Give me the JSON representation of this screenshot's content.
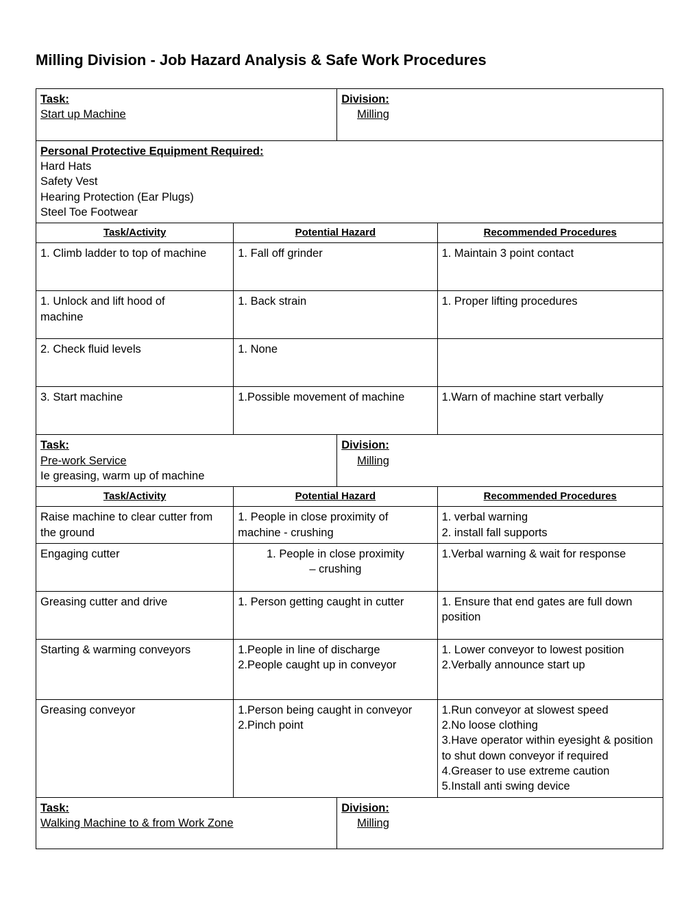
{
  "page": {
    "title": "Milling Division - Job Hazard Analysis & Safe Work Procedures"
  },
  "section1": {
    "task_label": "Task: ",
    "task_value": "Start up Machine",
    "division_label": "Division: ",
    "division_value": "Milling",
    "ppe_label": "Personal Protective Equipment Required:",
    "ppe_1": "Hard Hats",
    "ppe_2": "Safety Vest",
    "ppe_3": "Hearing Protection (Ear Plugs)",
    "ppe_4": "Steel Toe Footwear",
    "col1": "Task/Activity",
    "col2": "Potential Hazard",
    "col3": "Recommended Procedures",
    "rows": [
      {
        "a": "1.  Climb ladder to top of machine",
        "h": "1.  Fall off grinder",
        "p": "1.  Maintain 3 point contact"
      },
      {
        "a": "1.  Unlock and lift hood of\n      machine",
        "h": "1. Back strain",
        "p": "1. Proper lifting procedures"
      },
      {
        "a": "2.  Check fluid levels",
        "h": "1. None",
        "p": ""
      },
      {
        "a": "3.  Start machine",
        "h": "1.Possible movement of machine",
        "p": "1.Warn of machine start verbally"
      }
    ]
  },
  "section2": {
    "task_label": "Task: ",
    "task_value": "Pre-work Service",
    "task_extra": "Ie greasing, warm up of machine",
    "division_label": "Division: ",
    "division_value": "Milling",
    "col1": "Task/Activity",
    "col2": "Potential Hazard",
    "col3": "Recommended Procedures",
    "rows": [
      {
        "a": "Raise machine to clear cutter from the ground",
        "h": "1. People in close proximity of machine - crushing",
        "p": "1. verbal warning\n2. install fall supports"
      },
      {
        "a": "Engaging cutter",
        "h": "1.  People in close proximity\n– crushing",
        "p": "1.Verbal warning & wait for response"
      },
      {
        "a": "Greasing cutter and drive",
        "h": "1. Person getting caught in cutter",
        "p": "1.  Ensure that end gates are full down position"
      },
      {
        "a": "Starting & warming conveyors",
        "h": "1.People in line of discharge\n2.People caught up in conveyor",
        "p": "1.  Lower conveyor to lowest position\n2.Verbally announce start up"
      },
      {
        "a": "Greasing conveyor",
        "h": "1.Person being caught in conveyor\n2.Pinch point",
        "p": "1.Run conveyor at slowest speed\n2.No loose clothing\n3.Have operator within eyesight & position to shut down conveyor if required\n4.Greaser to use extreme caution\n5.Install anti swing device"
      }
    ]
  },
  "section3": {
    "task_label": "Task: ",
    "task_value": "Walking Machine to & from Work Zone",
    "division_label": "Division: ",
    "division_value": "Milling"
  }
}
